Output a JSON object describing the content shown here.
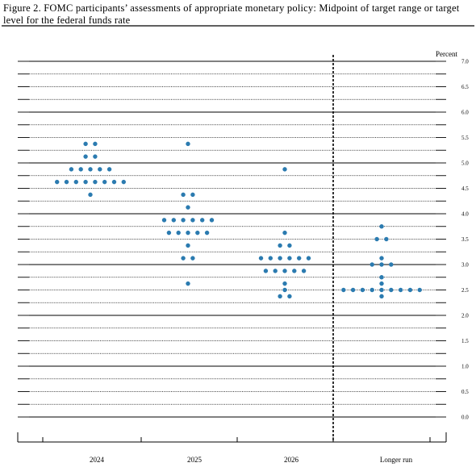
{
  "chart_data": {
    "type": "dot",
    "title": "Figure 2.  FOMC participants’ assessments of appropriate monetary policy: Midpoint of target range or target level for the federal funds rate",
    "y_label": "Percent",
    "color": "#2b7bb0",
    "categories": [
      "2024",
      "2025",
      "2026",
      "Longer run"
    ],
    "dots": [
      [
        {
          "value": 5.375,
          "count": 2
        },
        {
          "value": 5.125,
          "count": 2
        },
        {
          "value": 4.875,
          "count": 5
        },
        {
          "value": 4.625,
          "count": 8
        },
        {
          "value": 4.375,
          "count": 1
        }
      ],
      [
        {
          "value": 5.375,
          "count": 1
        },
        {
          "value": 4.375,
          "count": 2
        },
        {
          "value": 4.125,
          "count": 1
        },
        {
          "value": 3.875,
          "count": 6
        },
        {
          "value": 3.625,
          "count": 5
        },
        {
          "value": 3.375,
          "count": 1
        },
        {
          "value": 3.125,
          "count": 2
        },
        {
          "value": 2.625,
          "count": 1
        }
      ],
      [
        {
          "value": 4.875,
          "count": 1
        },
        {
          "value": 3.625,
          "count": 1
        },
        {
          "value": 3.375,
          "count": 2
        },
        {
          "value": 3.125,
          "count": 6
        },
        {
          "value": 2.875,
          "count": 5
        },
        {
          "value": 2.625,
          "count": 1
        },
        {
          "value": 2.5,
          "count": 1
        },
        {
          "value": 2.375,
          "count": 2
        }
      ],
      [
        {
          "value": 3.75,
          "count": 1
        },
        {
          "value": 3.5,
          "count": 2
        },
        {
          "value": 3.125,
          "count": 1
        },
        {
          "value": 3.0,
          "count": 3
        },
        {
          "value": 2.75,
          "count": 1
        },
        {
          "value": 2.625,
          "count": 1
        },
        {
          "value": 2.5,
          "count": 9
        },
        {
          "value": 2.375,
          "count": 1
        }
      ]
    ],
    "ylim": [
      0,
      7
    ],
    "yticks": [
      {
        "value": 0,
        "label": "0.0"
      },
      {
        "value": 0.5,
        "label": "0.5"
      },
      {
        "value": 1,
        "label": "1.0"
      },
      {
        "value": 1.5,
        "label": "1.5"
      },
      {
        "value": 2,
        "label": "2.0"
      },
      {
        "value": 2.5,
        "label": "2.5"
      },
      {
        "value": 3,
        "label": "3.0"
      },
      {
        "value": 3.5,
        "label": "3.5"
      },
      {
        "value": 4,
        "label": "4.0"
      },
      {
        "value": 4.5,
        "label": "4.5"
      },
      {
        "value": 5,
        "label": "5.0"
      },
      {
        "value": 5.5,
        "label": "5.5"
      },
      {
        "value": 6,
        "label": "6.0"
      },
      {
        "value": 6.5,
        "label": "6.5"
      },
      {
        "value": 7,
        "label": "7.0"
      }
    ],
    "grid": true
  }
}
